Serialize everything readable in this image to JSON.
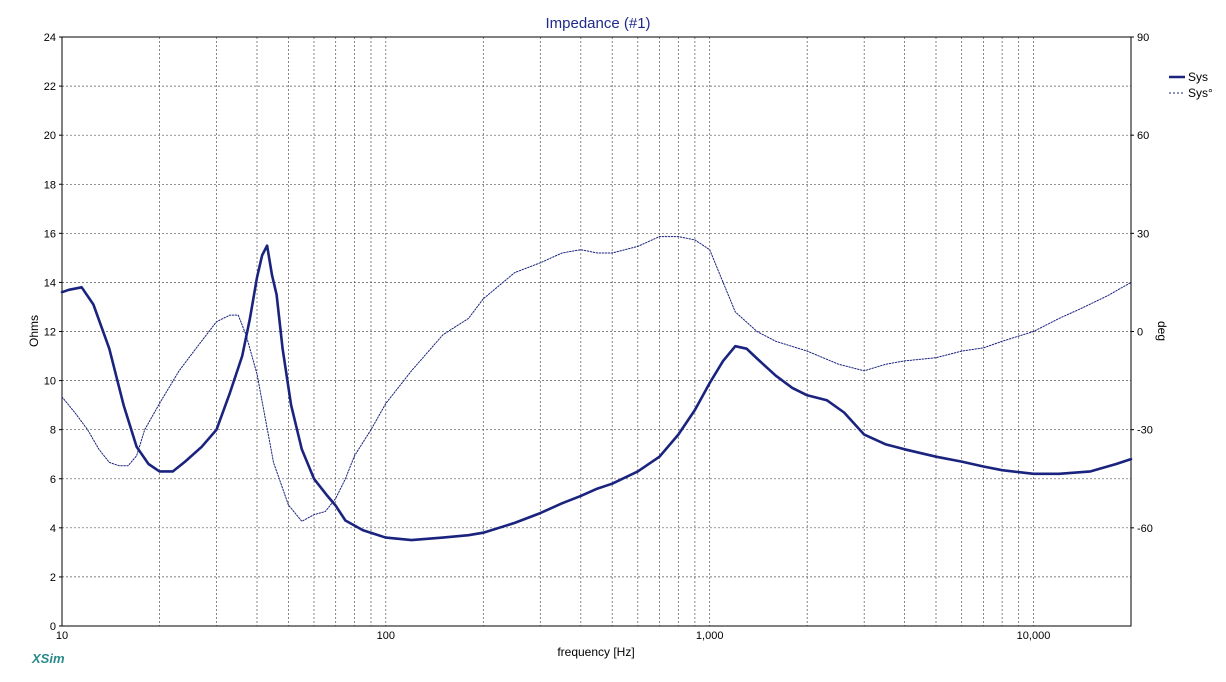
{
  "chart_data": {
    "type": "line",
    "title": "Impedance (#1)",
    "xlabel": "frequency [Hz]",
    "ylabel": "Ohms",
    "y2label": "deg",
    "x_scale": "log",
    "xlim": [
      10,
      20000
    ],
    "ylim": [
      0,
      24
    ],
    "y2lim": [
      -90,
      90
    ],
    "grid": true,
    "legend_position": "top-right",
    "x_tick_labels": [
      {
        "value": 10,
        "label": "10"
      },
      {
        "value": 100,
        "label": "100"
      },
      {
        "value": 1000,
        "label": "1,000"
      },
      {
        "value": 10000,
        "label": "10,000"
      }
    ],
    "y_ticks": [
      0,
      2,
      4,
      6,
      8,
      10,
      12,
      14,
      16,
      18,
      20,
      22,
      24
    ],
    "y2_ticks": [
      -60,
      -30,
      0,
      30,
      60,
      90
    ],
    "series": [
      {
        "name": "Sys",
        "axis": "left",
        "style": "solid",
        "color": "#1a237e",
        "x": [
          10,
          10.5,
          11.5,
          12.5,
          14,
          15.5,
          17,
          18.5,
          20,
          22,
          24,
          27,
          30,
          33,
          36,
          38,
          40,
          41.5,
          43,
          44.5,
          46,
          48,
          51,
          55,
          60,
          66,
          70,
          75,
          85,
          100,
          120,
          150,
          180,
          200,
          250,
          300,
          350,
          400,
          450,
          500,
          600,
          700,
          800,
          900,
          1000,
          1100,
          1200,
          1300,
          1400,
          1600,
          1800,
          2000,
          2300,
          2600,
          3000,
          3500,
          4000,
          5000,
          6000,
          7000,
          8000,
          10000,
          12000,
          15000,
          18000,
          20000
        ],
        "y": [
          13.6,
          13.7,
          13.8,
          13.1,
          11.3,
          9.0,
          7.3,
          6.6,
          6.3,
          6.3,
          6.7,
          7.3,
          8.0,
          9.5,
          11.0,
          12.5,
          14.2,
          15.1,
          15.5,
          14.3,
          13.5,
          11.3,
          9.0,
          7.2,
          6.0,
          5.3,
          4.9,
          4.3,
          3.9,
          3.6,
          3.5,
          3.6,
          3.7,
          3.8,
          4.2,
          4.6,
          5.0,
          5.3,
          5.6,
          5.8,
          6.3,
          6.9,
          7.8,
          8.8,
          9.9,
          10.8,
          11.4,
          11.3,
          10.9,
          10.2,
          9.7,
          9.4,
          9.2,
          8.7,
          7.8,
          7.4,
          7.2,
          6.9,
          6.7,
          6.5,
          6.35,
          6.2,
          6.2,
          6.3,
          6.6,
          6.8
        ]
      },
      {
        "name": "Sys°",
        "axis": "right",
        "style": "dashed",
        "color": "#1a237e",
        "x": [
          10,
          11,
          12,
          13,
          14,
          15,
          16,
          17,
          18,
          20,
          23,
          26,
          30,
          33,
          35,
          37,
          40,
          45,
          50,
          55,
          60,
          65,
          70,
          75,
          80,
          90,
          100,
          120,
          150,
          180,
          200,
          250,
          300,
          350,
          400,
          450,
          500,
          600,
          700,
          800,
          900,
          1000,
          1100,
          1200,
          1400,
          1600,
          2000,
          2500,
          3000,
          3500,
          4000,
          5000,
          6000,
          7000,
          8000,
          10000,
          12000,
          14000,
          17000,
          20000
        ],
        "y": [
          -20,
          -25,
          -30,
          -36,
          -40,
          -41,
          -41,
          -38,
          -30,
          -22,
          -12,
          -5,
          3,
          5,
          5,
          -1,
          -13,
          -40,
          -53,
          -58,
          -56,
          -55,
          -51,
          -45,
          -38,
          -30,
          -22,
          -12,
          -1,
          4,
          10,
          18,
          21,
          24,
          25,
          24,
          24,
          26,
          29,
          29,
          28,
          25,
          15,
          6,
          0,
          -3,
          -6,
          -10,
          -12,
          -10,
          -9,
          -8,
          -6,
          -5,
          -3,
          0,
          4,
          7,
          11,
          15
        ]
      }
    ]
  },
  "brand": "XSim"
}
